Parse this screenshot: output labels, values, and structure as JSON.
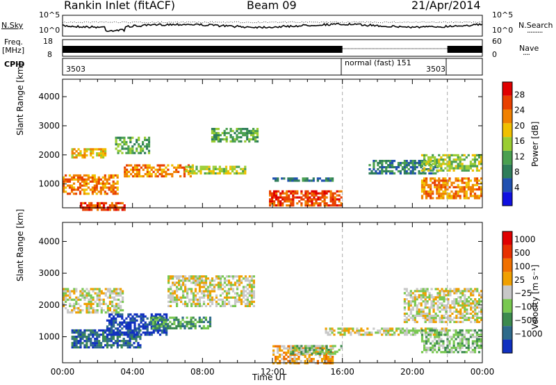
{
  "header": {
    "station": "Rankin Inlet (fitACF)",
    "beam": "Beam 09",
    "date": "21/Apr/2014"
  },
  "noise_panel": {
    "left_label": "N.Sky",
    "left_top_tick": "10^5",
    "left_bottom_tick": "10^0",
    "right_top_tick": "10^5",
    "right_bottom_tick": "10^0",
    "right_label": "N.Search",
    "right_label_line": "·········"
  },
  "freq_panel": {
    "label_line1": "Freq.",
    "label_line2": "[MHz]",
    "left_top_tick": "18",
    "left_bottom_tick": "8",
    "right_top_tick": "60",
    "right_bottom_tick": "0",
    "right_label": "Nave",
    "right_label_line": "····"
  },
  "cpid_panel": {
    "label": "CPID",
    "segments": [
      {
        "text": "3503",
        "start_h": 0,
        "end_h": 16
      },
      {
        "text": "normal (fast) 151",
        "start_h": 16,
        "end_h": 22
      },
      {
        "text": "3503",
        "start_h": 22,
        "end_h": 24
      }
    ]
  },
  "chart_data": [
    {
      "type": "heatmap",
      "name": "power",
      "ylabel": "Slant Range [km]",
      "ylim": [
        180,
        4600
      ],
      "yticks": [
        "1000",
        "2000",
        "3000",
        "4000"
      ],
      "xlim": [
        0,
        24
      ],
      "colorbar": {
        "label": "Power [dB]",
        "ticks": [
          "4",
          "8",
          "12",
          "16",
          "20",
          "24",
          "28"
        ],
        "colors": [
          "#1010e0",
          "#2050b0",
          "#2e7d5a",
          "#4aa050",
          "#9acd32",
          "#f0c000",
          "#f08000",
          "#e84000",
          "#e00000"
        ]
      },
      "regions": [
        {
          "t0": 0.0,
          "t1": 3.2,
          "r0": 700,
          "r1": 1400,
          "level": 6
        },
        {
          "t0": 1.0,
          "t1": 3.6,
          "r0": 150,
          "r1": 450,
          "level": 7
        },
        {
          "t0": 3.5,
          "t1": 7.5,
          "r0": 1300,
          "r1": 1750,
          "level": 6
        },
        {
          "t0": 7.0,
          "t1": 10.5,
          "r0": 1400,
          "r1": 1700,
          "level": 4
        },
        {
          "t0": 0.5,
          "t1": 2.5,
          "r0": 1950,
          "r1": 2300,
          "level": 5
        },
        {
          "t0": 3.0,
          "t1": 5.0,
          "r0": 2100,
          "r1": 2700,
          "level": 3
        },
        {
          "t0": 8.5,
          "t1": 11.2,
          "r0": 2500,
          "r1": 3000,
          "level": 3
        },
        {
          "t0": 11.8,
          "t1": 16.0,
          "r0": 300,
          "r1": 850,
          "level": 7
        },
        {
          "t0": 12.0,
          "t1": 15.5,
          "r0": 1150,
          "r1": 1300,
          "level": 2
        },
        {
          "t0": 17.5,
          "t1": 21.5,
          "r0": 1400,
          "r1": 1900,
          "level": 2
        },
        {
          "t0": 20.5,
          "t1": 24.0,
          "r0": 550,
          "r1": 1300,
          "level": 6
        },
        {
          "t0": 20.5,
          "t1": 24.0,
          "r0": 1500,
          "r1": 2100,
          "level": 4
        }
      ]
    },
    {
      "type": "heatmap",
      "name": "velocity",
      "ylabel": "Slant Range [km]",
      "ylim": [
        180,
        4600
      ],
      "yticks": [
        "1000",
        "2000",
        "3000",
        "4000"
      ],
      "xlim": [
        0,
        24
      ],
      "xticks": [
        "00:00",
        "04:00",
        "08:00",
        "12:00",
        "16:00",
        "20:00",
        "00:00"
      ],
      "xlabel": "Time UT",
      "colorbar": {
        "label": "Velocity [m s⁻¹]",
        "ticks": [
          "1000",
          "500",
          "100",
          "25",
          "−25",
          "−100",
          "−500",
          "−1000"
        ],
        "colors": [
          "#1030c0",
          "#2e6a8a",
          "#3c8a4e",
          "#78c850",
          "#c8c8c8",
          "#f0a000",
          "#f07000",
          "#e83000",
          "#e00000"
        ]
      },
      "regions": [
        {
          "t0": 0.5,
          "t1": 4.5,
          "r0": 700,
          "r1": 1300,
          "level": 1
        },
        {
          "t0": 2.5,
          "t1": 6.0,
          "r0": 1100,
          "r1": 1800,
          "level": 0
        },
        {
          "t0": 5.0,
          "t1": 8.5,
          "r0": 1300,
          "r1": 1700,
          "level": 2
        },
        {
          "t0": 0.0,
          "t1": 3.5,
          "r0": 1800,
          "r1": 2600,
          "level": 4
        },
        {
          "t0": 6.0,
          "t1": 11.0,
          "r0": 2000,
          "r1": 3000,
          "level": 4
        },
        {
          "t0": 12.0,
          "t1": 15.5,
          "r0": 200,
          "r1": 800,
          "level": 5
        },
        {
          "t0": 13.0,
          "t1": 16.0,
          "r0": 500,
          "r1": 800,
          "level": 3
        },
        {
          "t0": 15.0,
          "t1": 22.0,
          "r0": 1100,
          "r1": 1350,
          "level": 4
        },
        {
          "t0": 19.5,
          "t1": 24.0,
          "r0": 1500,
          "r1": 2600,
          "level": 4
        },
        {
          "t0": 20.5,
          "t1": 24.0,
          "r0": 550,
          "r1": 1300,
          "level": 3
        }
      ]
    }
  ]
}
